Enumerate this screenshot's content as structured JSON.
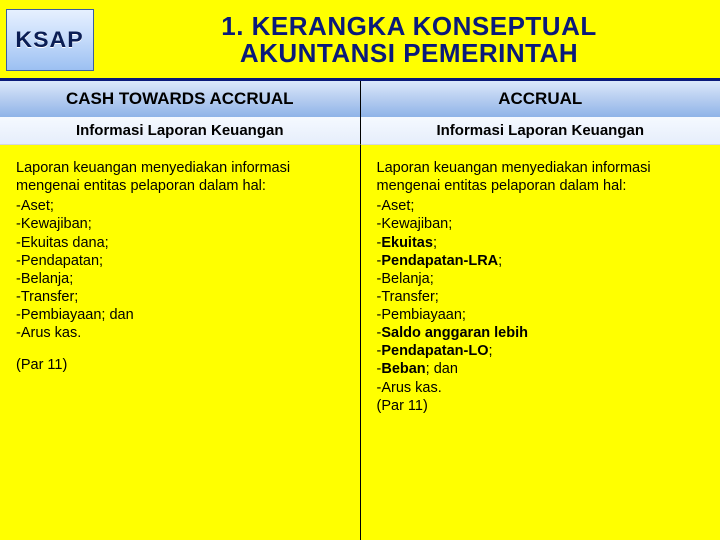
{
  "colors": {
    "background": "#ffff00",
    "title_color": "#0a1a7a",
    "divider_color": "#0a1a7a",
    "header_gradient": [
      "#dbe8fb",
      "#b6cdf0",
      "#8eb3e8"
    ],
    "logo_gradient": [
      "#e6f0ff",
      "#c8ddfb",
      "#9cc0f2"
    ]
  },
  "typography": {
    "title_fontsize": 26,
    "header_fontsize": 17,
    "subheader_fontsize": 15,
    "body_fontsize": 14.5
  },
  "logo": {
    "text": "KSAP"
  },
  "title": {
    "line1": "1. KERANGKA KONSEPTUAL",
    "line2": "AKUNTANSI PEMERINTAH"
  },
  "columns": {
    "left": {
      "header": "CASH TOWARDS ACCRUAL",
      "subheader": "Informasi Laporan Keuangan",
      "intro": "Laporan keuangan menyediakan informasi mengenai entitas pelaporan dalam hal:",
      "items": [
        "-Aset;",
        "-Kewajiban;",
        "-Ekuitas dana;",
        "-Pendapatan;",
        "-Belanja;",
        "-Transfer;",
        "-Pembiayaan; dan",
        "-Arus kas."
      ],
      "par": "(Par 11)"
    },
    "right": {
      "header": "ACCRUAL",
      "subheader": "Informasi Laporan Keuangan",
      "intro": "Laporan keuangan menyediakan informasi mengenai entitas pelaporan dalam hal:",
      "items_plain": [
        "-Aset;",
        "-Kewajiban;"
      ],
      "item_ekuitas_pre": "-",
      "item_ekuitas_bold": "Ekuitas",
      "item_ekuitas_post": ";",
      "item_pendapatan_pre": "-",
      "item_pendapatan_bold": "Pendapatan-LRA",
      "item_pendapatan_post": ";",
      "items_plain2": [
        "-Belanja;",
        "-Transfer;",
        "-Pembiayaan;"
      ],
      "item_saldo_pre": "-",
      "item_saldo_bold": "Saldo anggaran lebih",
      "item_pendlo_pre": "-",
      "item_pendlo_bold": "Pendapatan-LO",
      "item_pendlo_post": ";",
      "item_beban_pre": "-",
      "item_beban_bold": "Beban",
      "item_beban_post": "; dan",
      "items_plain3": [
        "-Arus kas."
      ],
      "par": "(Par 11)"
    }
  }
}
